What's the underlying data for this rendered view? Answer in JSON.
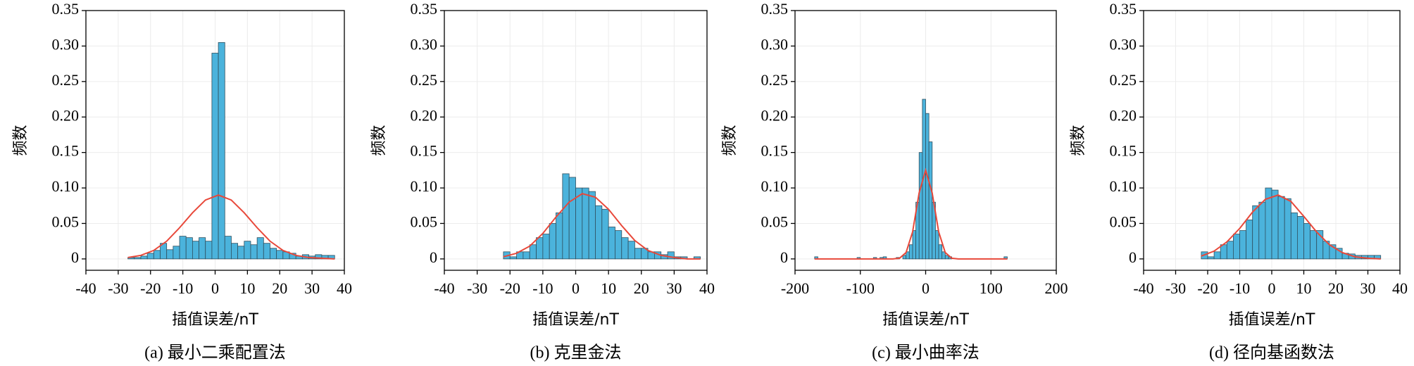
{
  "chart_data": [
    {
      "type": "histogram",
      "title": "(a) 最小二乘配置法",
      "xlabel": "插值误差/nT",
      "ylabel": "频数",
      "bins": [
        -27,
        -25,
        -23,
        -21,
        -19,
        -17,
        -15,
        -13,
        -11,
        -9,
        -7,
        -5,
        -3,
        -1,
        1,
        3,
        5,
        7,
        9,
        11,
        13,
        15,
        17,
        19,
        21,
        23,
        25,
        27,
        29,
        31,
        33,
        35,
        37
      ],
      "values": [
        0.002,
        0.002,
        0.004,
        0.008,
        0.012,
        0.022,
        0.013,
        0.018,
        0.032,
        0.03,
        0.025,
        0.03,
        0.025,
        0.29,
        0.305,
        0.032,
        0.022,
        0.018,
        0.025,
        0.02,
        0.03,
        0.022,
        0.015,
        0.012,
        0.01,
        0.008,
        0.004,
        0.006,
        0.004,
        0.006,
        0.005,
        0.005
      ],
      "color": "#4bb3dc",
      "fit": {
        "x": [
          -27,
          -23,
          -19,
          -15,
          -11,
          -7,
          -3,
          1,
          5,
          9,
          13,
          17,
          21,
          25,
          29,
          33,
          37
        ],
        "values": [
          0.002,
          0.005,
          0.012,
          0.025,
          0.044,
          0.065,
          0.083,
          0.09,
          0.083,
          0.065,
          0.044,
          0.025,
          0.012,
          0.005,
          0.002,
          0.001,
          0.0
        ],
        "color": "#e8483a"
      },
      "xlim": [
        -40,
        40
      ],
      "xticks": [
        -40,
        -30,
        -20,
        -10,
        0,
        10,
        20,
        30,
        40
      ],
      "ylim": [
        -0.016,
        0.35
      ],
      "yticks": [
        0,
        0.05,
        {
          "value": 0.1,
          "label": "0.10"
        },
        0.15,
        {
          "value": 0.2,
          "label": "0.20"
        },
        0.25,
        {
          "value": 0.3,
          "label": "0.30"
        },
        0.35
      ],
      "grid": true
    },
    {
      "type": "histogram",
      "title": "(b) 克里金法",
      "xlabel": "插值误差/nT",
      "ylabel": "频数",
      "bins": [
        -22,
        -20,
        -18,
        -16,
        -14,
        -12,
        -10,
        -8,
        -6,
        -4,
        -2,
        0,
        2,
        4,
        6,
        8,
        10,
        12,
        14,
        16,
        18,
        20,
        22,
        24,
        26,
        28,
        30,
        32,
        34,
        36,
        38
      ],
      "values": [
        0.01,
        0.003,
        0.01,
        0.01,
        0.02,
        0.03,
        0.035,
        0.05,
        0.065,
        0.12,
        0.115,
        0.1,
        0.1,
        0.095,
        0.075,
        0.07,
        0.045,
        0.04,
        0.03,
        0.025,
        0.015,
        0.015,
        0.01,
        0.01,
        0.006,
        0.01,
        0.003,
        0.003,
        0,
        0.003
      ],
      "color": "#4bb3dc",
      "fit": {
        "x": [
          -22,
          -18,
          -14,
          -10,
          -6,
          -2,
          2,
          6,
          10,
          14,
          18,
          22,
          26,
          30,
          34,
          38
        ],
        "values": [
          0.003,
          0.008,
          0.018,
          0.036,
          0.059,
          0.08,
          0.092,
          0.087,
          0.07,
          0.047,
          0.026,
          0.012,
          0.005,
          0.002,
          0.0,
          0.0
        ],
        "color": "#e8483a"
      },
      "xlim": [
        -40,
        40
      ],
      "xticks": [
        -40,
        -30,
        -20,
        -10,
        0,
        10,
        20,
        30,
        40
      ],
      "ylim": [
        -0.016,
        0.35
      ],
      "yticks": [
        0,
        0.05,
        {
          "value": 0.1,
          "label": "0.10"
        },
        0.15,
        {
          "value": 0.2,
          "label": "0.20"
        },
        0.25,
        {
          "value": 0.3,
          "label": "0.30"
        },
        0.35
      ],
      "grid": true
    },
    {
      "type": "histogram",
      "title": "(c) 最小曲率法",
      "xlabel": "插值误差/nT",
      "ylabel": "频数",
      "bins": [
        -170,
        -165,
        -160,
        -155,
        -150,
        -145,
        -140,
        -135,
        -130,
        -125,
        -120,
        -115,
        -110,
        -105,
        -100,
        -95,
        -90,
        -85,
        -80,
        -75,
        -70,
        -65,
        -60,
        -55,
        -50,
        -45,
        -40,
        -35,
        -30,
        -25,
        -20,
        -15,
        -10,
        -5,
        0,
        5,
        10,
        15,
        20,
        25,
        30,
        35,
        40,
        45,
        50,
        55,
        60,
        65,
        70,
        75,
        80,
        85,
        90,
        95,
        100,
        105,
        110,
        115,
        120,
        125
      ],
      "values": [
        0.003,
        0,
        0,
        0,
        0,
        0,
        0,
        0,
        0,
        0,
        0,
        0,
        0,
        0.002,
        0,
        0,
        0,
        0,
        0.002,
        0,
        0.002,
        0.003,
        0,
        0,
        0,
        0.002,
        0,
        0.005,
        0.01,
        0.02,
        0.04,
        0.08,
        0.15,
        0.225,
        0.205,
        0.165,
        0.08,
        0.04,
        0.02,
        0.01,
        0.005,
        0.003,
        0,
        0,
        0,
        0,
        0,
        0,
        0,
        0,
        0,
        0,
        0,
        0,
        0,
        0,
        0,
        0,
        0.003
      ],
      "color": "#4bb3dc",
      "fit": {
        "x": [
          -170,
          -100,
          -60,
          -50,
          -40,
          -30,
          -20,
          -10,
          0,
          10,
          20,
          30,
          40,
          50,
          60,
          100,
          125
        ],
        "values": [
          0,
          0,
          0,
          0,
          0.001,
          0.009,
          0.038,
          0.093,
          0.125,
          0.093,
          0.038,
          0.009,
          0.001,
          0,
          0,
          0,
          0
        ],
        "color": "#e8483a"
      },
      "xlim": [
        -200,
        200
      ],
      "xticks": [
        -200,
        -100,
        0,
        100,
        200
      ],
      "ylim": [
        -0.016,
        0.35
      ],
      "yticks": [
        0,
        0.05,
        {
          "value": 0.1,
          "label": "0.10"
        },
        0.15,
        {
          "value": 0.2,
          "label": "0.20"
        },
        0.25,
        {
          "value": 0.3,
          "label": "0.30"
        },
        0.35
      ],
      "grid": true
    },
    {
      "type": "histogram",
      "title": "(d) 径向基函数法",
      "xlabel": "插值误差/nT",
      "ylabel": "频数",
      "bins": [
        -22,
        -20,
        -18,
        -16,
        -14,
        -12,
        -10,
        -8,
        -6,
        -4,
        -2,
        0,
        2,
        4,
        6,
        8,
        10,
        12,
        14,
        16,
        18,
        20,
        22,
        24,
        26,
        28,
        30,
        32,
        34
      ],
      "values": [
        0.01,
        0.003,
        0.01,
        0.02,
        0.025,
        0.035,
        0.04,
        0.055,
        0.075,
        0.08,
        0.1,
        0.097,
        0.088,
        0.085,
        0.065,
        0.06,
        0.05,
        0.04,
        0.04,
        0.025,
        0.02,
        0.015,
        0.008,
        0.007,
        0.005,
        0.005,
        0.005,
        0.005
      ],
      "color": "#4bb3dc",
      "fit": {
        "x": [
          -22,
          -18,
          -14,
          -10,
          -6,
          -2,
          2,
          6,
          10,
          14,
          18,
          22,
          26,
          30,
          34
        ],
        "values": [
          0.004,
          0.011,
          0.024,
          0.043,
          0.066,
          0.084,
          0.09,
          0.081,
          0.06,
          0.038,
          0.02,
          0.009,
          0.003,
          0.001,
          0.0
        ],
        "color": "#e8483a"
      },
      "xlim": [
        -40,
        40
      ],
      "xticks": [
        -40,
        -30,
        -20,
        -10,
        0,
        10,
        20,
        30,
        40
      ],
      "ylim": [
        -0.016,
        0.35
      ],
      "yticks": [
        0,
        0.05,
        {
          "value": 0.1,
          "label": "0.10"
        },
        0.15,
        {
          "value": 0.2,
          "label": "0.20"
        },
        0.25,
        {
          "value": 0.3,
          "label": "0.30"
        },
        0.35
      ],
      "grid": true
    }
  ]
}
